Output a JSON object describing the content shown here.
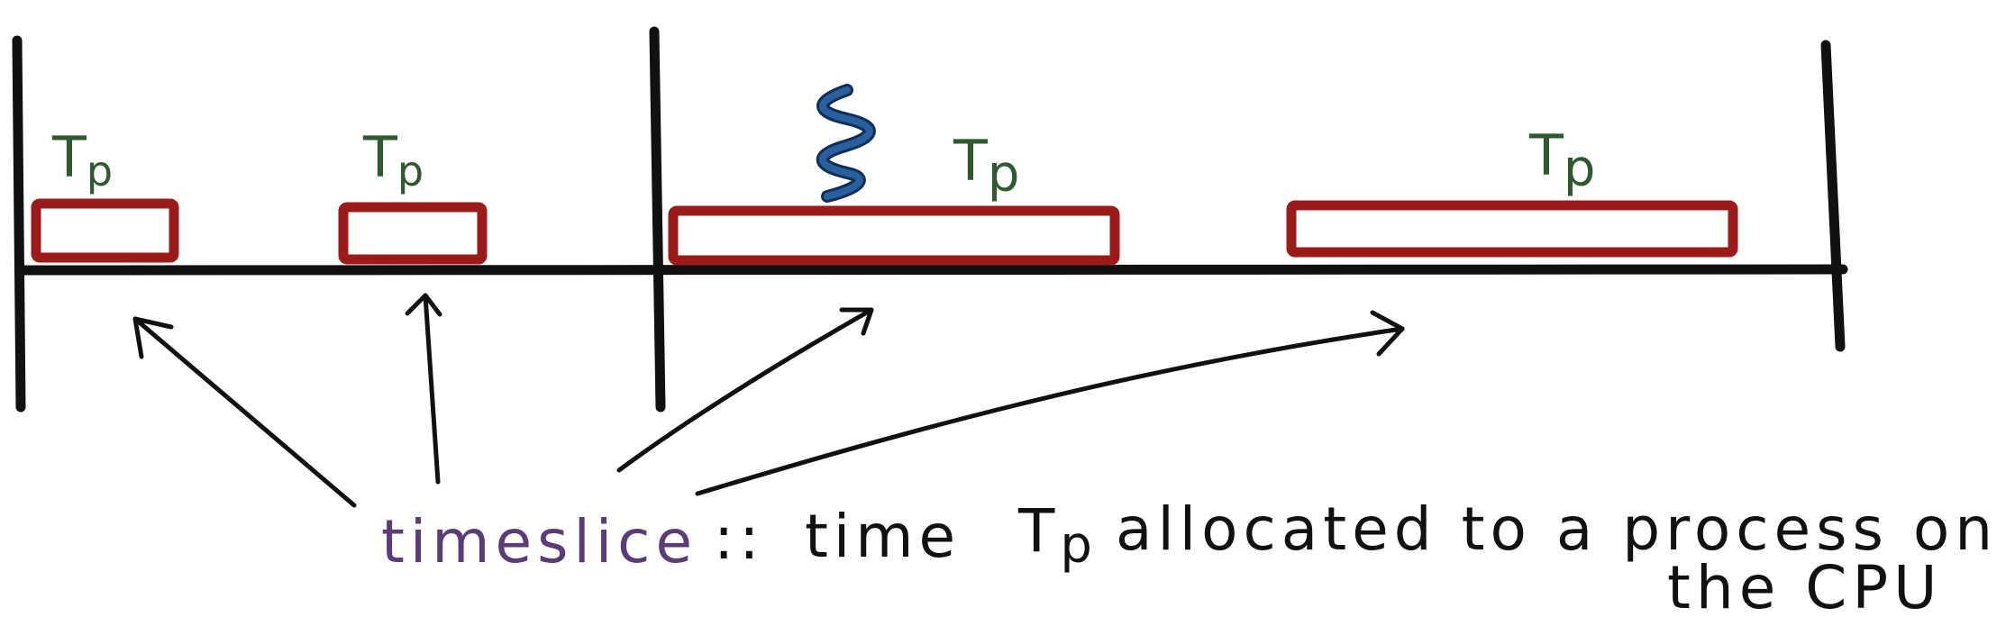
{
  "colors": {
    "ink": "#111111",
    "slice_border": "#9b1b1b",
    "label_green": "#2f5a2f",
    "term_purple": "#5b3c78",
    "squiggle_blue": "#2a5f9e"
  },
  "diagram": {
    "slice_label_prefix": "T",
    "slice_label_subscript": "p",
    "slices": [
      {
        "label": "Tp"
      },
      {
        "label": "Tp"
      },
      {
        "label": "Tp"
      },
      {
        "label": "Tp"
      }
    ],
    "interrupt_icon": "squiggle-interrupt-icon",
    "definition": {
      "term": "timeslice",
      "separator": "::",
      "text_before_symbol": "time",
      "symbol": "T",
      "symbol_subscript": "p",
      "text_after_symbol": "allocated to a process on",
      "continuation": "the CPU"
    }
  }
}
